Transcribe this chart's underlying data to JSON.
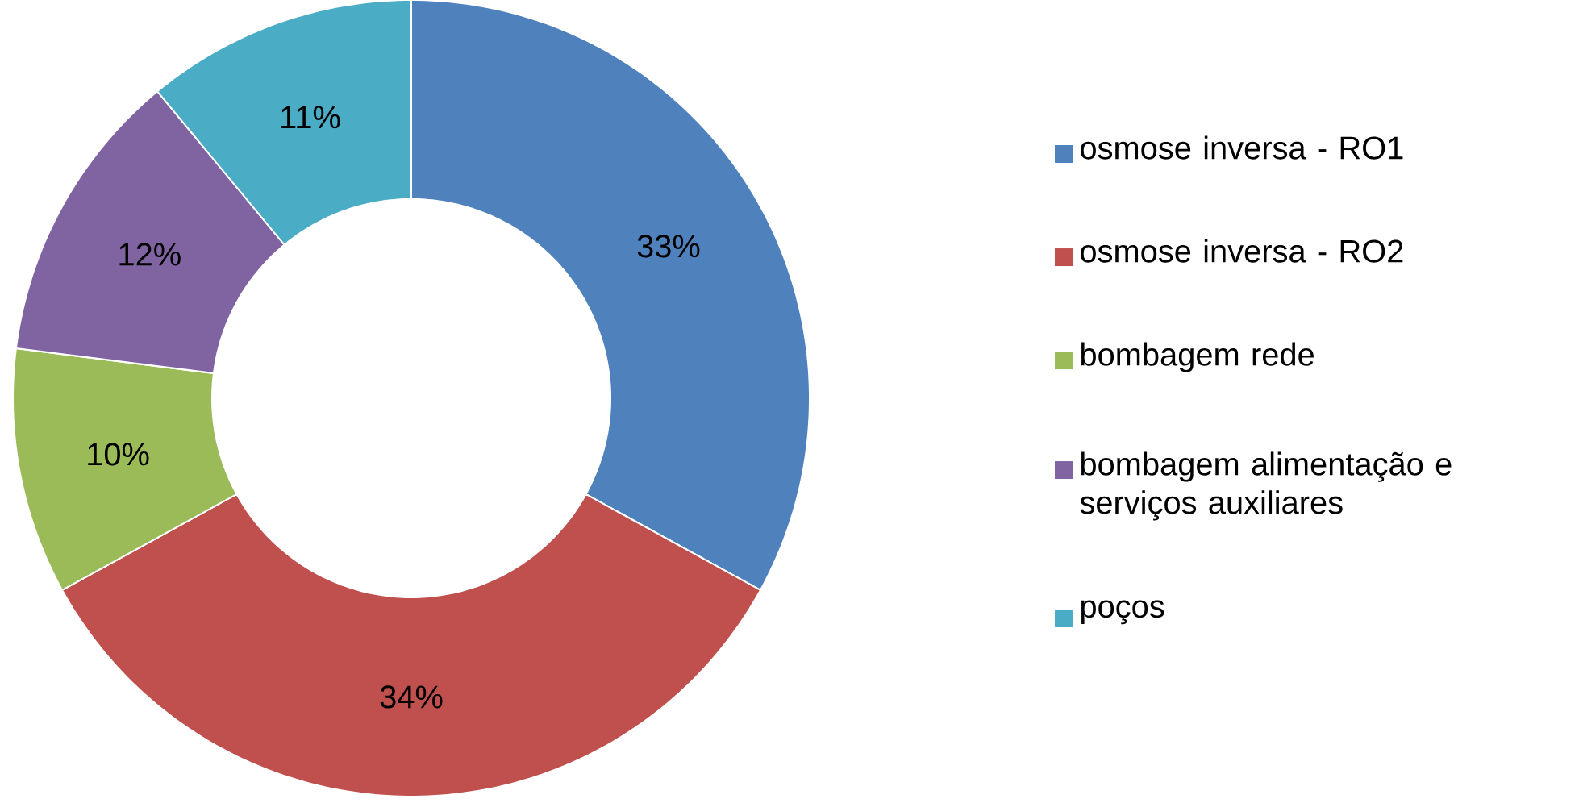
{
  "chart_data": {
    "type": "donut",
    "categories": [
      "osmose inversa - RO1",
      "osmose inversa - RO2",
      "bombagem rede",
      "bombagem alimentação e serviços auxiliares",
      "poços"
    ],
    "values": [
      33,
      34,
      10,
      12,
      11
    ],
    "colors": [
      "#4f81bd",
      "#c0504d",
      "#9bbb59",
      "#8064a2",
      "#4bacc6"
    ],
    "value_labels": [
      "33%",
      "34%",
      "10%",
      "12%",
      "11%"
    ],
    "legend": "right"
  }
}
